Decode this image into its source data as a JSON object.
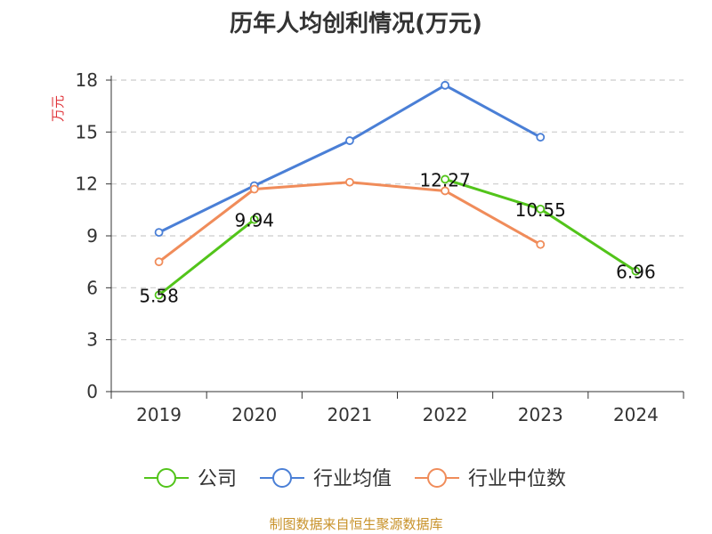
{
  "chart_data": {
    "type": "line",
    "title": "历年人均创利情况(万元)",
    "ylabel": "万元",
    "xlabel": "",
    "categories": [
      "2019",
      "2020",
      "2021",
      "2022",
      "2023",
      "2024"
    ],
    "ylim": [
      0,
      18
    ],
    "yticks": [
      0,
      3,
      6,
      9,
      12,
      15,
      18
    ],
    "grid": true,
    "legend": "bottom",
    "series": [
      {
        "name": "公司",
        "color": "#52c41a",
        "values": [
          5.58,
          9.94,
          null,
          12.27,
          10.55,
          6.96
        ],
        "labels": [
          "5.58",
          "9.94",
          null,
          "12.27",
          "10.55",
          "6.96"
        ]
      },
      {
        "name": "行业均值",
        "color": "#4a7fd6",
        "values": [
          9.2,
          11.9,
          14.5,
          17.7,
          14.7,
          null
        ]
      },
      {
        "name": "行业中位数",
        "color": "#f08c5a",
        "values": [
          7.5,
          11.7,
          12.1,
          11.6,
          8.5,
          null
        ]
      }
    ]
  },
  "source": "制图数据来自恒生聚源数据库"
}
